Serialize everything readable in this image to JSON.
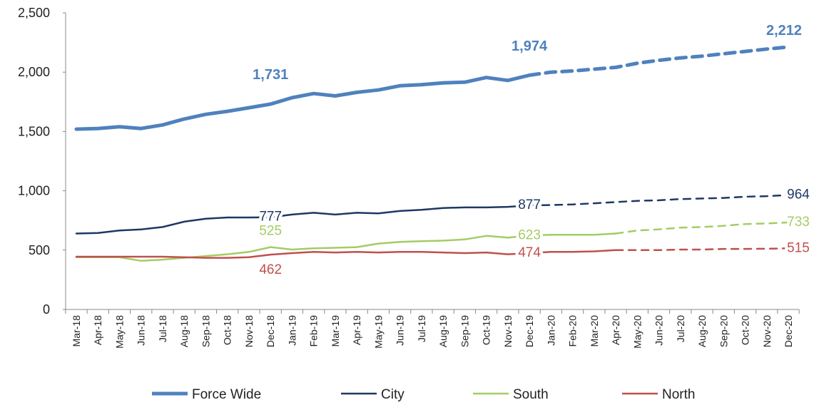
{
  "chart_data": {
    "type": "line",
    "categories": [
      "Mar-18",
      "Apr-18",
      "May-18",
      "Jun-18",
      "Jul-18",
      "Aug-18",
      "Sep-18",
      "Oct-18",
      "Nov-18",
      "Dec-18",
      "Jan-19",
      "Feb-19",
      "Mar-19",
      "Apr-19",
      "May-19",
      "Jun-19",
      "Jul-19",
      "Aug-19",
      "Sep-19",
      "Oct-19",
      "Nov-19",
      "Dec-19",
      "Jan-20",
      "Feb-20",
      "Mar-20",
      "Apr-20",
      "May-20",
      "Jun-20",
      "Jul-20",
      "Aug-20",
      "Sep-20",
      "Oct-20",
      "Nov-20",
      "Dec-20"
    ],
    "series": [
      {
        "name": "Force Wide",
        "color": "#4f81bd",
        "width": 5,
        "dash_from": 21,
        "values": [
          1520,
          1525,
          1540,
          1525,
          1555,
          1605,
          1645,
          1670,
          1700,
          1731,
          1785,
          1820,
          1800,
          1830,
          1850,
          1885,
          1895,
          1910,
          1915,
          1955,
          1930,
          1974,
          2000,
          2010,
          2025,
          2040,
          2075,
          2100,
          2120,
          2135,
          2155,
          2175,
          2195,
          2212
        ],
        "value_labels": [
          null,
          null,
          null,
          null,
          null,
          null,
          null,
          null,
          null,
          "1,731",
          null,
          null,
          null,
          null,
          null,
          null,
          null,
          null,
          null,
          null,
          null,
          "1,974",
          null,
          null,
          null,
          null,
          null,
          null,
          null,
          null,
          null,
          null,
          null,
          "2,212"
        ]
      },
      {
        "name": "City",
        "color": "#1f3864",
        "width": 2.5,
        "dash_from": 21,
        "values": [
          640,
          645,
          665,
          675,
          695,
          740,
          765,
          775,
          775,
          777,
          800,
          815,
          800,
          815,
          810,
          830,
          840,
          855,
          860,
          860,
          865,
          877,
          880,
          885,
          895,
          905,
          915,
          920,
          930,
          935,
          940,
          950,
          955,
          964
        ],
        "value_labels": [
          null,
          null,
          null,
          null,
          null,
          null,
          null,
          null,
          null,
          "777",
          null,
          null,
          null,
          null,
          null,
          null,
          null,
          null,
          null,
          null,
          null,
          "877",
          null,
          null,
          null,
          null,
          null,
          null,
          null,
          null,
          null,
          null,
          null,
          "964"
        ]
      },
      {
        "name": "South",
        "color": "#a3cc66",
        "width": 2.5,
        "dash_from": 25,
        "values": [
          440,
          440,
          440,
          410,
          420,
          435,
          450,
          465,
          485,
          525,
          505,
          515,
          520,
          525,
          555,
          570,
          575,
          580,
          590,
          620,
          605,
          623,
          630,
          630,
          630,
          640,
          665,
          675,
          690,
          695,
          705,
          720,
          725,
          733
        ],
        "value_labels": [
          null,
          null,
          null,
          null,
          null,
          null,
          null,
          null,
          null,
          "525",
          null,
          null,
          null,
          null,
          null,
          null,
          null,
          null,
          null,
          null,
          null,
          "623",
          null,
          null,
          null,
          null,
          null,
          null,
          null,
          null,
          null,
          null,
          null,
          "733"
        ]
      },
      {
        "name": "North",
        "color": "#c0504d",
        "width": 2.5,
        "dash_from": 25,
        "values": [
          445,
          445,
          445,
          445,
          445,
          440,
          435,
          435,
          440,
          462,
          475,
          485,
          480,
          485,
          480,
          485,
          485,
          480,
          475,
          480,
          465,
          474,
          485,
          485,
          490,
          500,
          500,
          500,
          505,
          505,
          510,
          510,
          512,
          515
        ],
        "value_labels": [
          null,
          null,
          null,
          null,
          null,
          null,
          null,
          null,
          null,
          "462",
          null,
          null,
          null,
          null,
          null,
          null,
          null,
          null,
          null,
          null,
          null,
          "474",
          null,
          null,
          null,
          null,
          null,
          null,
          null,
          null,
          null,
          null,
          null,
          "515"
        ]
      }
    ],
    "ylim": [
      0,
      2500
    ],
    "yticks": [
      0,
      500,
      {
        "value": 1000,
        "label": "1,000"
      },
      {
        "value": 1500,
        "label": "1,500"
      },
      {
        "value": 2000,
        "label": "2,000"
      },
      {
        "value": 2500,
        "label": "2,500"
      }
    ],
    "legend": "bottom"
  }
}
